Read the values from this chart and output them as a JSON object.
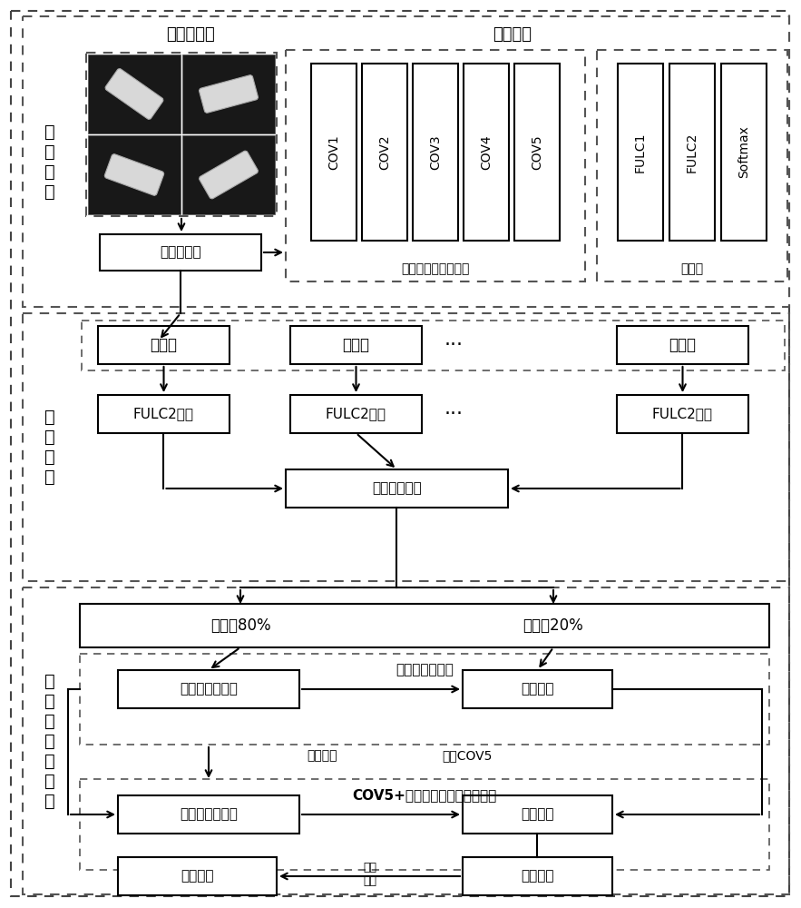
{
  "fig_width": 8.83,
  "fig_height": 10.0,
  "bg_color": "#ffffff",
  "section1_label": "构\n造\n模\n型",
  "section2_label": "特\n征\n连\n接",
  "section3_label": "模\n型\n训\n练\n与\n优\n化",
  "s1_title_left": "糖果数据集",
  "s1_title_right": "模型结构",
  "s1_preprocess": "图片预处理",
  "s1_cov_labels": [
    "COV1",
    "COV2",
    "COV3",
    "COV4",
    "COV5"
  ],
  "s1_fulc_labels": [
    "FULC1",
    "FULC2",
    "Softmax"
  ],
  "s1_feat_label": "特征提取层（冻结）",
  "s1_cls_label": "分类器",
  "s2_row1_labels": [
    "裸糖集",
    "虚封集",
    "正面集"
  ],
  "s2_row2_labels": [
    "FULC2特征",
    "FULC2特征",
    "FULC2特征"
  ],
  "s2_merge": "获取级联特征",
  "s3_train80": "训练集80%",
  "s3_test20": "测试集20%",
  "s3_label1": "分类器参数训练",
  "s3_train1": "模型第一次训练",
  "s3_test1": "模型测试",
  "s3_save": "保存模型",
  "s3_unfreeze": "解冻COV5",
  "s3_label2": "COV5+分类器参数训练（微调）",
  "s3_train2": "模型第二次训练",
  "s3_test2": "模型测试",
  "s3_final": "最终模型",
  "s3_result": "分类结果",
  "s3_eval": "评估\n优化"
}
